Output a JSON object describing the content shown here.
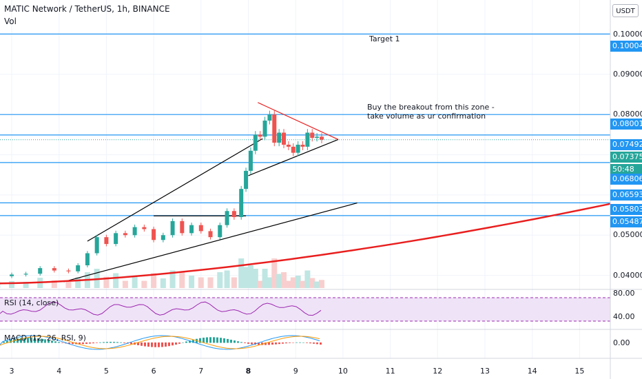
{
  "header": {
    "title": "MATIC Network / TetherUS, 1h, BINANCE",
    "vol_label": "Vol"
  },
  "currency": "USDT",
  "annotations": {
    "target": "Target 1",
    "breakout_line1": "Buy the breakout from this zone -",
    "breakout_line2": "take volume as ur confirmation"
  },
  "price_labels": [
    {
      "text": "0.10004",
      "style": "blue"
    },
    {
      "text": "0.08001",
      "style": "blue"
    },
    {
      "text": "0.07492",
      "style": "blue"
    },
    {
      "text": "0.07375",
      "style": "teal"
    },
    {
      "text": "50:48",
      "style": "teal"
    },
    {
      "text": "0.06806",
      "style": "blue"
    },
    {
      "text": "0.06593",
      "style": "blue"
    },
    {
      "text": "0.05803",
      "style": "blue"
    },
    {
      "text": "0.05487",
      "style": "blue"
    }
  ],
  "indicators": {
    "rsi_label": "RSI (14, close)",
    "rsi_upper": "80.00",
    "rsi_lower": "40.00",
    "macd_label": "MACD (12, 26, RSI, 9)",
    "macd_zero": "0.00"
  },
  "colors": {
    "up": "#26a69a",
    "down": "#ef5350",
    "level_line": "#2196f3",
    "trend_red": "#e91e1e",
    "rsi_line": "#9c27b0",
    "rsi_band": "#efe3f7",
    "macd_line": "#2196f3",
    "signal_line": "#ff9800"
  },
  "chart_data": {
    "type": "candlestick",
    "symbol": "MATIC Network / TetherUS",
    "interval": "1h",
    "exchange": "BINANCE",
    "x_ticks": [
      "3",
      "4",
      "5",
      "6",
      "7",
      "8",
      "9",
      "10",
      "11",
      "12",
      "13",
      "14",
      "15"
    ],
    "y_ticks": [
      "0.04000",
      "0.05000",
      "0.06000",
      "0.07000",
      "0.08000",
      "0.09000",
      "0.10000"
    ],
    "ylim": [
      0.0365,
      0.1085
    ],
    "price_levels": [
      0.10004,
      0.08001,
      0.07492,
      0.06806,
      0.05803,
      0.05487
    ],
    "last_price": 0.07375,
    "countdown": "50:48",
    "ohlc": [
      {
        "day": 2.7,
        "open": 0.0395,
        "close": 0.0398
      },
      {
        "day": 3.0,
        "open": 0.0398,
        "close": 0.0402
      },
      {
        "day": 3.3,
        "open": 0.0402,
        "close": 0.0404
      },
      {
        "day": 3.6,
        "open": 0.0404,
        "close": 0.0418
      },
      {
        "day": 3.9,
        "open": 0.0418,
        "close": 0.0412
      },
      {
        "day": 4.2,
        "open": 0.0412,
        "close": 0.041
      },
      {
        "day": 4.4,
        "open": 0.041,
        "close": 0.0425
      },
      {
        "day": 4.6,
        "open": 0.0425,
        "close": 0.0455
      },
      {
        "day": 4.8,
        "open": 0.0455,
        "close": 0.0495
      },
      {
        "day": 5.0,
        "open": 0.0495,
        "close": 0.0478
      },
      {
        "day": 5.2,
        "open": 0.0478,
        "close": 0.0505
      },
      {
        "day": 5.4,
        "open": 0.0505,
        "close": 0.05
      },
      {
        "day": 5.6,
        "open": 0.05,
        "close": 0.052
      },
      {
        "day": 5.8,
        "open": 0.052,
        "close": 0.0515
      },
      {
        "day": 6.0,
        "open": 0.0515,
        "close": 0.0488
      },
      {
        "day": 6.2,
        "open": 0.0488,
        "close": 0.05
      },
      {
        "day": 6.4,
        "open": 0.05,
        "close": 0.0535
      },
      {
        "day": 6.6,
        "open": 0.0535,
        "close": 0.0505
      },
      {
        "day": 6.8,
        "open": 0.0505,
        "close": 0.0525
      },
      {
        "day": 7.0,
        "open": 0.0525,
        "close": 0.051
      },
      {
        "day": 7.2,
        "open": 0.051,
        "close": 0.0495
      },
      {
        "day": 7.4,
        "open": 0.0495,
        "close": 0.0525
      },
      {
        "day": 7.55,
        "open": 0.0525,
        "close": 0.056
      },
      {
        "day": 7.7,
        "open": 0.056,
        "close": 0.0545
      },
      {
        "day": 7.85,
        "open": 0.0545,
        "close": 0.0615
      },
      {
        "day": 7.95,
        "open": 0.0615,
        "close": 0.066
      },
      {
        "day": 8.05,
        "open": 0.066,
        "close": 0.071
      },
      {
        "day": 8.15,
        "open": 0.071,
        "close": 0.075
      },
      {
        "day": 8.25,
        "open": 0.075,
        "close": 0.0745
      },
      {
        "day": 8.35,
        "open": 0.0745,
        "close": 0.0785
      },
      {
        "day": 8.45,
        "open": 0.0785,
        "close": 0.08
      },
      {
        "day": 8.55,
        "open": 0.08,
        "close": 0.073
      },
      {
        "day": 8.65,
        "open": 0.073,
        "close": 0.0755
      },
      {
        "day": 8.75,
        "open": 0.0755,
        "close": 0.0725
      },
      {
        "day": 8.85,
        "open": 0.0725,
        "close": 0.072
      },
      {
        "day": 8.95,
        "open": 0.072,
        "close": 0.0705
      },
      {
        "day": 9.05,
        "open": 0.0705,
        "close": 0.0725
      },
      {
        "day": 9.15,
        "open": 0.0725,
        "close": 0.072
      },
      {
        "day": 9.25,
        "open": 0.072,
        "close": 0.0755
      },
      {
        "day": 9.35,
        "open": 0.0755,
        "close": 0.0742
      },
      {
        "day": 9.45,
        "open": 0.0742,
        "close": 0.0745
      },
      {
        "day": 9.55,
        "open": 0.0745,
        "close": 0.07375
      }
    ]
  }
}
